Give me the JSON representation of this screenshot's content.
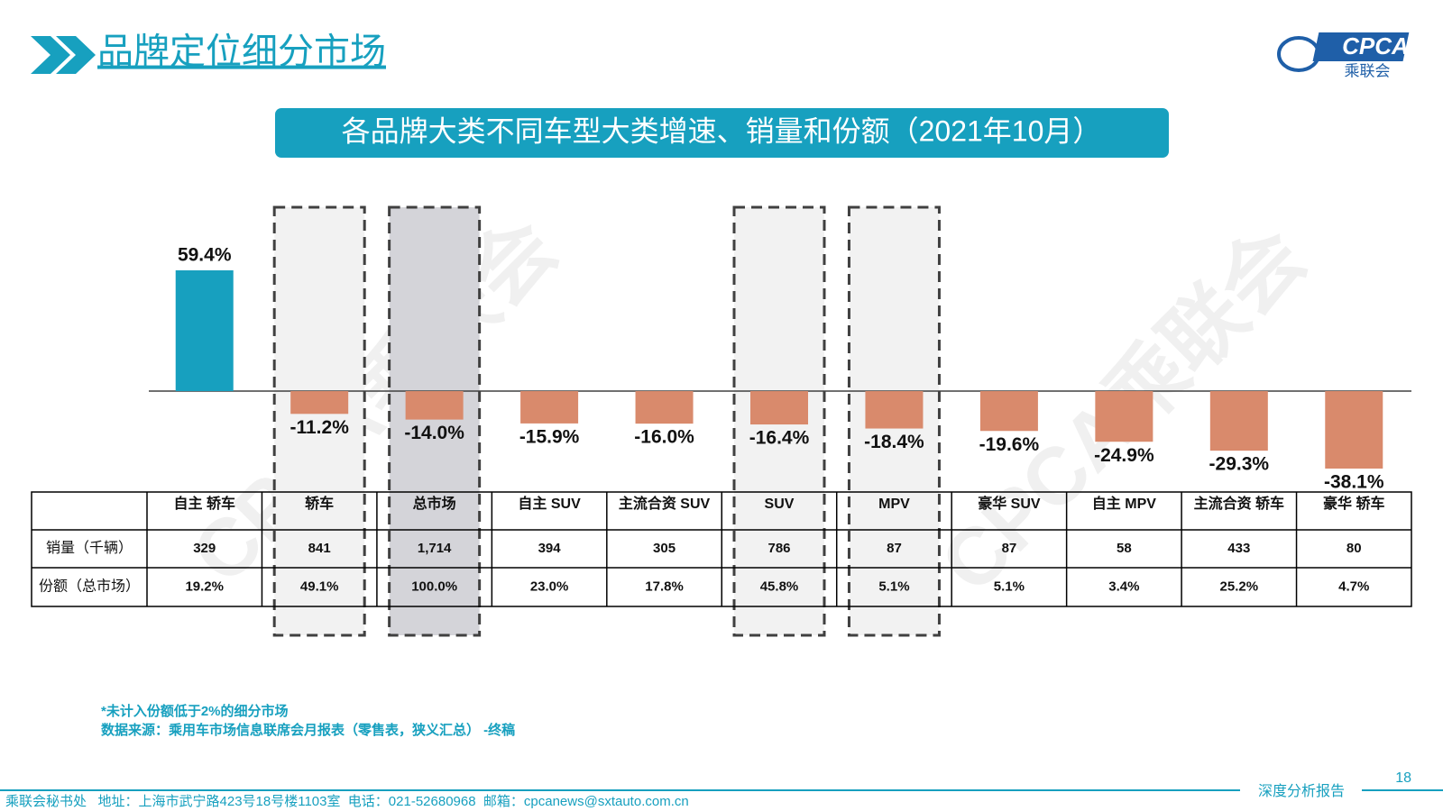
{
  "header": {
    "title": "品牌定位细分市场",
    "logo_text": "CPCA",
    "logo_sub": "乘联会"
  },
  "chart_data": {
    "type": "bar",
    "title": "各品牌大类不同车型大类增速、销量和份额（2021年10月）",
    "categories": [
      "自主 轿车",
      "轿车",
      "总市场",
      "自主 SUV",
      "主流合资 SUV",
      "SUV",
      "MPV",
      "豪华 SUV",
      "自主 MPV",
      "主流合资 轿车",
      "豪华 轿车"
    ],
    "values": [
      59.4,
      -11.2,
      -14.0,
      -15.9,
      -16.0,
      -16.4,
      -18.4,
      -19.6,
      -24.9,
      -29.3,
      -38.1
    ],
    "value_labels": [
      "59.4%",
      "-11.2%",
      "-14.0%",
      "-15.9%",
      "-16.0%",
      "-16.4%",
      "-18.4%",
      "-19.6%",
      "-24.9%",
      "-29.3%",
      "-38.1%"
    ],
    "colors": {
      "positive": "#17a0bf",
      "negative": "#d98a6c"
    },
    "highlight": [
      false,
      true,
      true,
      false,
      false,
      true,
      true,
      false,
      false,
      false,
      false
    ],
    "highlight_strong": [
      false,
      false,
      true,
      false,
      false,
      false,
      false,
      false,
      false,
      false,
      false
    ],
    "table": {
      "rows": [
        {
          "label": "销量（千辆）",
          "values": [
            329,
            841,
            1714,
            394,
            305,
            786,
            87,
            87,
            58,
            433,
            80
          ],
          "value_labels": [
            "329",
            "841",
            "1,714",
            "394",
            "305",
            "786",
            "87",
            "87",
            "58",
            "433",
            "80"
          ]
        },
        {
          "label": "份额（总市场）",
          "values": [
            19.2,
            49.1,
            100.0,
            23.0,
            17.8,
            45.8,
            5.1,
            5.1,
            3.4,
            25.2,
            4.7
          ],
          "value_labels": [
            "19.2%",
            "49.1%",
            "100.0%",
            "23.0%",
            "17.8%",
            "45.8%",
            "5.1%",
            "5.1%",
            "3.4%",
            "25.2%",
            "4.7%"
          ]
        }
      ]
    }
  },
  "notes": [
    "*未计入份额低于2%的细分市场",
    "数据来源：乘用车市场信息联席会月报表（零售表，狭义汇总） -终稿"
  ],
  "watermark": "CPCA乘联会",
  "footer": {
    "contact": "乘联会秘书处   地址：上海市武宁路423号18号楼1103室  电话：021-52680968  邮箱：cpcanews@sxtauto.com.cn",
    "report": "深度分析报告",
    "page": "18"
  }
}
